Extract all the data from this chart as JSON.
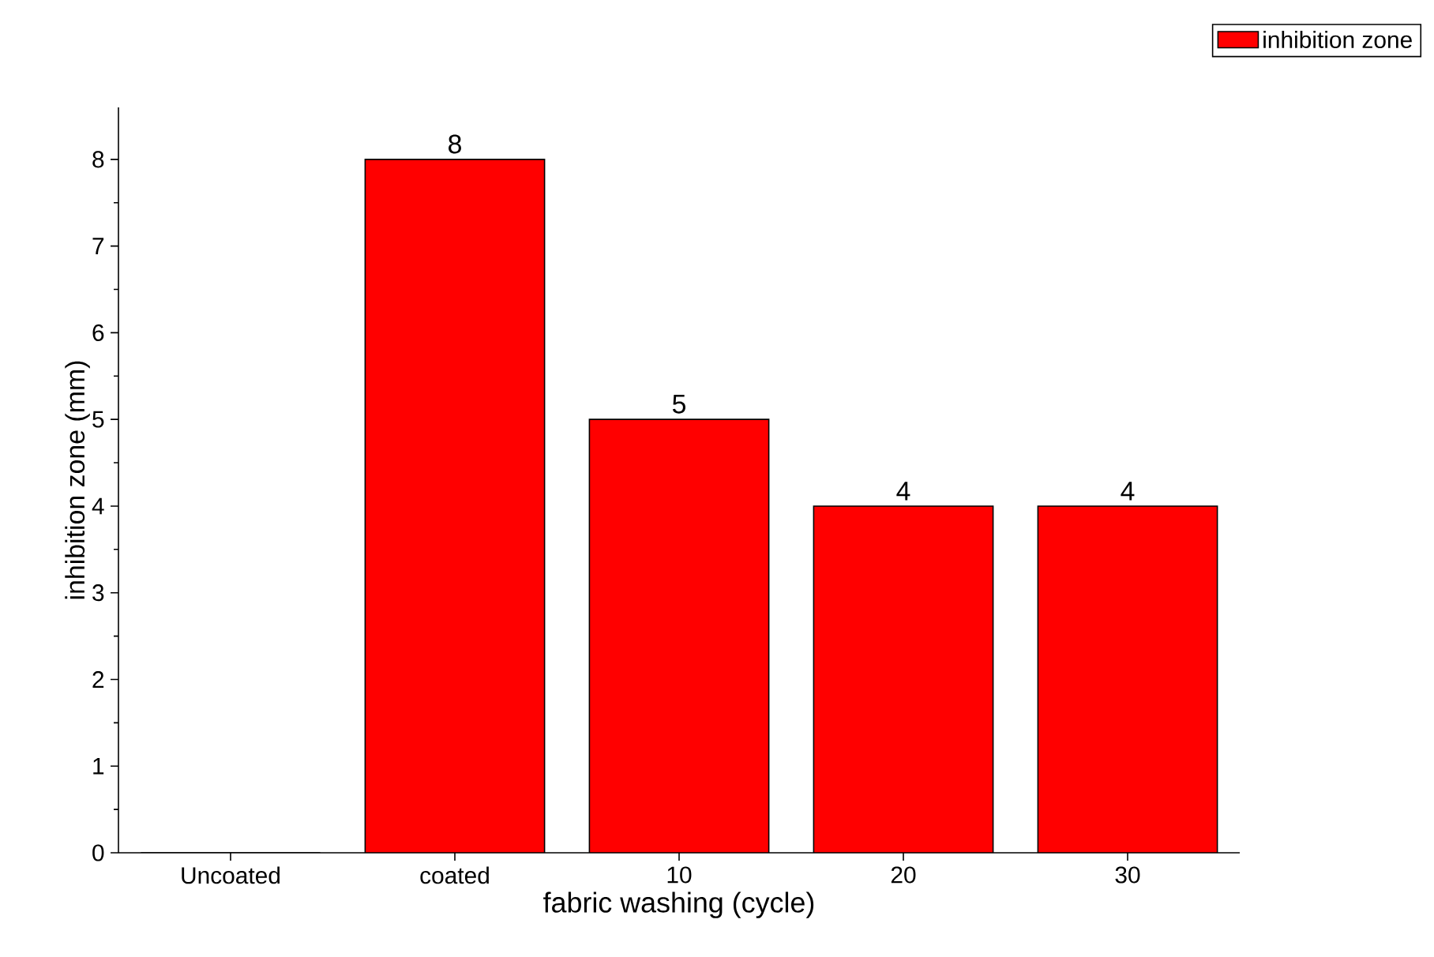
{
  "chart_data": {
    "type": "bar",
    "xlabel": "fabric washing (cycle)",
    "ylabel": "inhibition zone (mm)",
    "categories": [
      "Uncoated",
      "coated",
      "10",
      "20",
      "30"
    ],
    "series": [
      {
        "name": "inhibition zone",
        "color": "#ff0000",
        "values": [
          0,
          8,
          5,
          4,
          4
        ],
        "value_labels": [
          null,
          "8",
          "5",
          "4",
          "4"
        ]
      }
    ],
    "ylim": [
      0,
      8.6
    ],
    "yticks": [
      0,
      1,
      2,
      3,
      4,
      5,
      6,
      7,
      8
    ],
    "legend": "top right"
  }
}
